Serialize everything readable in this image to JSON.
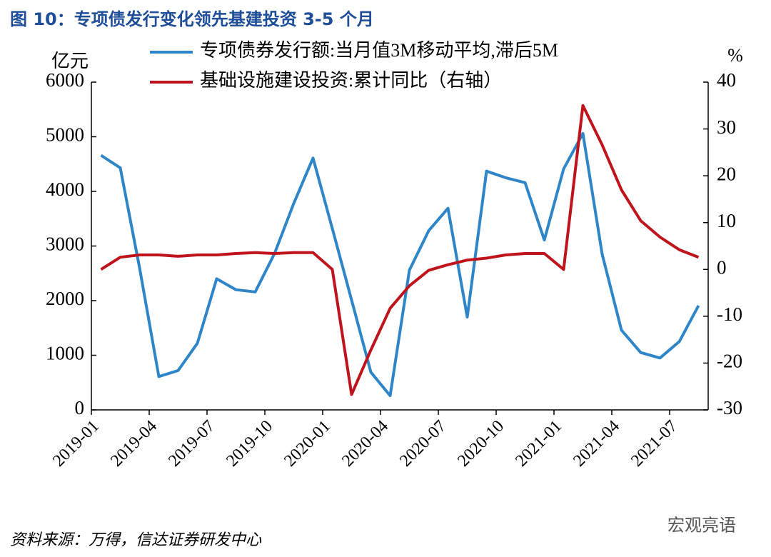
{
  "chart_data": {
    "type": "line",
    "title": "图 10：专项债发行变化领先基建投资 3-5 个月",
    "y_label": "亿元",
    "y2_label": "%",
    "categories": [
      "2019-01",
      null,
      null,
      "2019-04",
      null,
      null,
      "2019-07",
      null,
      null,
      "2019-10",
      null,
      null,
      "2020-01",
      null,
      null,
      "2020-04",
      null,
      null,
      "2020-07",
      null,
      null,
      "2020-10",
      null,
      null,
      "2021-01",
      null,
      null,
      "2021-04",
      null,
      null,
      "2021-07",
      null
    ],
    "series": [
      {
        "name": "专项债券发行额:当月值3M移动平均,滞后5M",
        "color": "#2e86c8",
        "axis": "y",
        "values": [
          4660,
          4430,
          2600,
          610,
          720,
          1220,
          2400,
          2200,
          2160,
          2860,
          3780,
          4610,
          3320,
          2010,
          690,
          260,
          2560,
          3280,
          3690,
          1700,
          4370,
          4250,
          4160,
          3110,
          4410,
          5060,
          2850,
          1460,
          1050,
          950,
          1250,
          1910
        ]
      },
      {
        "name": "基础设施建设投资:累计同比（右轴）",
        "color": "#c0141c",
        "axis": "y2",
        "values": [
          0,
          2.6,
          3.1,
          3.1,
          2.8,
          3.1,
          3.1,
          3.4,
          3.6,
          3.4,
          3.6,
          3.6,
          0,
          -26.7,
          -17.2,
          -8.3,
          -3.5,
          -0.2,
          1.0,
          2.0,
          2.4,
          3.1,
          3.4,
          3.4,
          0,
          35.0,
          26.6,
          17.0,
          10.4,
          6.9,
          4.2,
          2.6
        ]
      }
    ],
    "ylim": [
      0,
      6000
    ],
    "yticks": [
      0,
      1000,
      2000,
      3000,
      4000,
      5000,
      6000
    ],
    "y2lim": [
      -30,
      40
    ],
    "y2ticks": [
      -30,
      -20,
      -10,
      0,
      10,
      20,
      30,
      40
    ],
    "source": "资料来源：万得，信达证券研发中心",
    "watermark": "宏观亮语"
  }
}
